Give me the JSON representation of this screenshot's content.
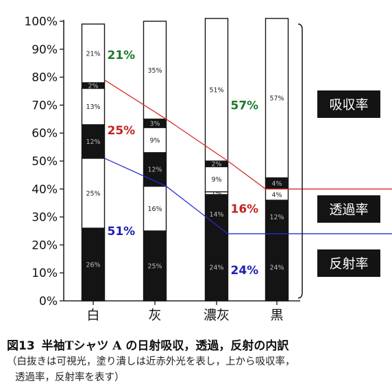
{
  "chart_data": {
    "type": "bar",
    "stacked": true,
    "categories": [
      "白",
      "灰",
      "濃灰",
      "黒"
    ],
    "yticks": [
      "0%",
      "10%",
      "20%",
      "30%",
      "40%",
      "50%",
      "60%",
      "70%",
      "80%",
      "90%",
      "100%"
    ],
    "ylim": [
      0,
      100
    ],
    "segments_bottom_to_top": [
      [
        {
          "value": 26,
          "label": "26%",
          "fill": "black"
        },
        {
          "value": 25,
          "label": "25%",
          "fill": "white"
        },
        {
          "value": 12,
          "label": "12%",
          "fill": "black"
        },
        {
          "value": 13,
          "label": "13%",
          "fill": "white"
        },
        {
          "value": 2,
          "label": "2%",
          "fill": "black"
        },
        {
          "value": 21,
          "label": "21%",
          "fill": "white"
        }
      ],
      [
        {
          "value": 25,
          "label": "25%",
          "fill": "black"
        },
        {
          "value": 16,
          "label": "16%",
          "fill": "white"
        },
        {
          "value": 12,
          "label": "12%",
          "fill": "black"
        },
        {
          "value": 9,
          "label": "9%",
          "fill": "white"
        },
        {
          "value": 3,
          "label": "3%",
          "fill": "black"
        },
        {
          "value": 35,
          "label": "35%",
          "fill": "white"
        }
      ],
      [
        {
          "value": 24,
          "label": "24%",
          "fill": "black"
        },
        {
          "value": 14,
          "label": "14%",
          "fill": "black"
        },
        {
          "value": 1,
          "label": "1%",
          "fill": "white"
        },
        {
          "value": 9,
          "label": "9%",
          "fill": "white"
        },
        {
          "value": 2,
          "label": "2%",
          "fill": "black"
        },
        {
          "value": 51,
          "label": "51%",
          "fill": "white"
        }
      ],
      [
        {
          "value": 24,
          "label": "24%",
          "fill": "black"
        },
        {
          "value": 12,
          "label": "12%",
          "fill": "black"
        },
        {
          "value": 4,
          "label": "4%",
          "fill": "white"
        },
        {
          "value": 4,
          "label": "4%",
          "fill": "black"
        },
        {
          "value": 57,
          "label": "57%",
          "fill": "white"
        }
      ]
    ],
    "boundary_lines": [
      {
        "color": "#d42a2a",
        "y": [
          79,
          65,
          50,
          40
        ]
      },
      {
        "color": "#2a2ad8",
        "y": [
          51,
          41,
          24,
          24
        ]
      }
    ],
    "legend": [
      "吸収率",
      "透過率",
      "反射率"
    ],
    "annotations": [
      {
        "text": "21%",
        "color": "#1b7a2a",
        "bar": 0,
        "y": 88
      },
      {
        "text": "25%",
        "color": "#c42121",
        "bar": 0,
        "y": 61
      },
      {
        "text": "51%",
        "color": "#1e1eb4",
        "bar": 0,
        "y": 25
      },
      {
        "text": "57%",
        "color": "#1b7a2a",
        "bar": 2,
        "y": 70
      },
      {
        "text": "16%",
        "color": "#c42121",
        "bar": 2,
        "y": 33
      },
      {
        "text": "24%",
        "color": "#1e1eb4",
        "bar": 2,
        "y": 11
      }
    ]
  },
  "caption": {
    "figure_number": "図13",
    "title": "半袖Tシャツ A の日射吸収，透過，反射の内訳",
    "line1": "（白抜きは可視光，塗り潰しは近赤外光を表し，上から吸収率，",
    "line2": "透過率，反射率を表す）"
  }
}
